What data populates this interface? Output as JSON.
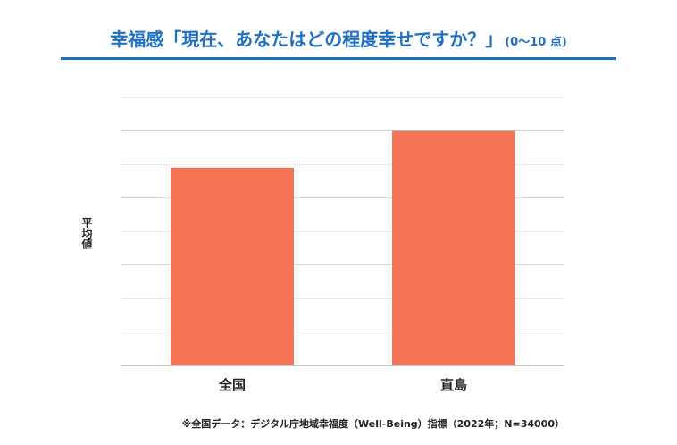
{
  "title": {
    "main": "幸福感「現在、あなたはどの程度幸せですか？」",
    "suffix": "(0〜10 点)"
  },
  "footnote": "※全国データ：デジタル庁地域幸福度（Well-Being）指標（2022年；N=34000）",
  "colors": {
    "title": "#1f6fc2",
    "bar": "#f47555",
    "grid": "#d9d9d9",
    "axis": "#888888"
  },
  "chart_data": {
    "type": "bar",
    "categories": [
      "全国",
      "直島"
    ],
    "values": [
      5.9,
      7.0
    ],
    "ylabel": "平均値",
    "ylim": [
      0,
      8
    ],
    "grid": true,
    "y_tick_labels_shown": false
  }
}
